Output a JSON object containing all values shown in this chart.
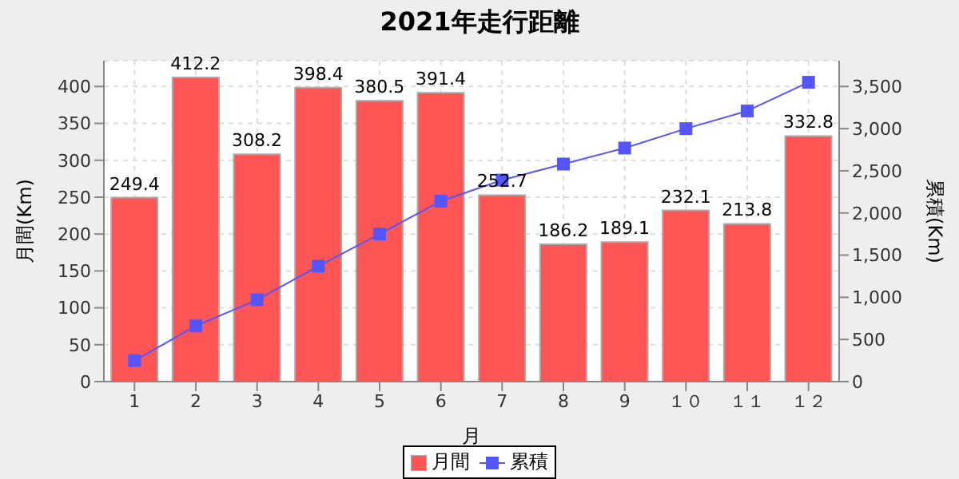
{
  "chart_data": {
    "type": "bar",
    "title": "2021年走行距離",
    "xlabel": "月",
    "ylabel": "月間(Km)",
    "y2label": "累積(Km)",
    "categories": [
      "1",
      "2",
      "3",
      "4",
      "5",
      "6",
      "7",
      "8",
      "9",
      "１０",
      "１１",
      "１２"
    ],
    "series": [
      {
        "name": "月間",
        "color": "#ff5555",
        "values": [
          249.4,
          412.2,
          308.2,
          398.4,
          380.5,
          391.4,
          252.7,
          186.2,
          189.1,
          232.1,
          213.8,
          332.8
        ],
        "value_labels": [
          "249.4",
          "412.2",
          "308.2",
          "398.4",
          "380.5",
          "391.4",
          "252.7",
          "186.2",
          "189.1",
          "232.1",
          "213.8",
          "332.8"
        ]
      },
      {
        "name": "累積",
        "type": "line",
        "axis": "y2",
        "color": "#5555ff",
        "marker": "square",
        "values": [
          250,
          660,
          970,
          1370,
          1750,
          2140,
          2390,
          2580,
          2770,
          3000,
          3210,
          3550
        ]
      }
    ],
    "ylim": [
      0,
      435
    ],
    "yticks": [
      0,
      50,
      100,
      150,
      200,
      250,
      300,
      350,
      400
    ],
    "y2lim": [
      0,
      3806
    ],
    "y2ticks": [
      0,
      {
        "value": 500,
        "label": "500"
      },
      {
        "value": 1000,
        "label": "1,000"
      },
      {
        "value": 1500,
        "label": "1,500"
      },
      {
        "value": 2000,
        "label": "2,000"
      },
      {
        "value": 2500,
        "label": "2,500"
      },
      {
        "value": 3000,
        "label": "3,000"
      },
      {
        "value": 3500,
        "label": "3,500"
      }
    ],
    "grid": true,
    "legend": "bottom"
  }
}
